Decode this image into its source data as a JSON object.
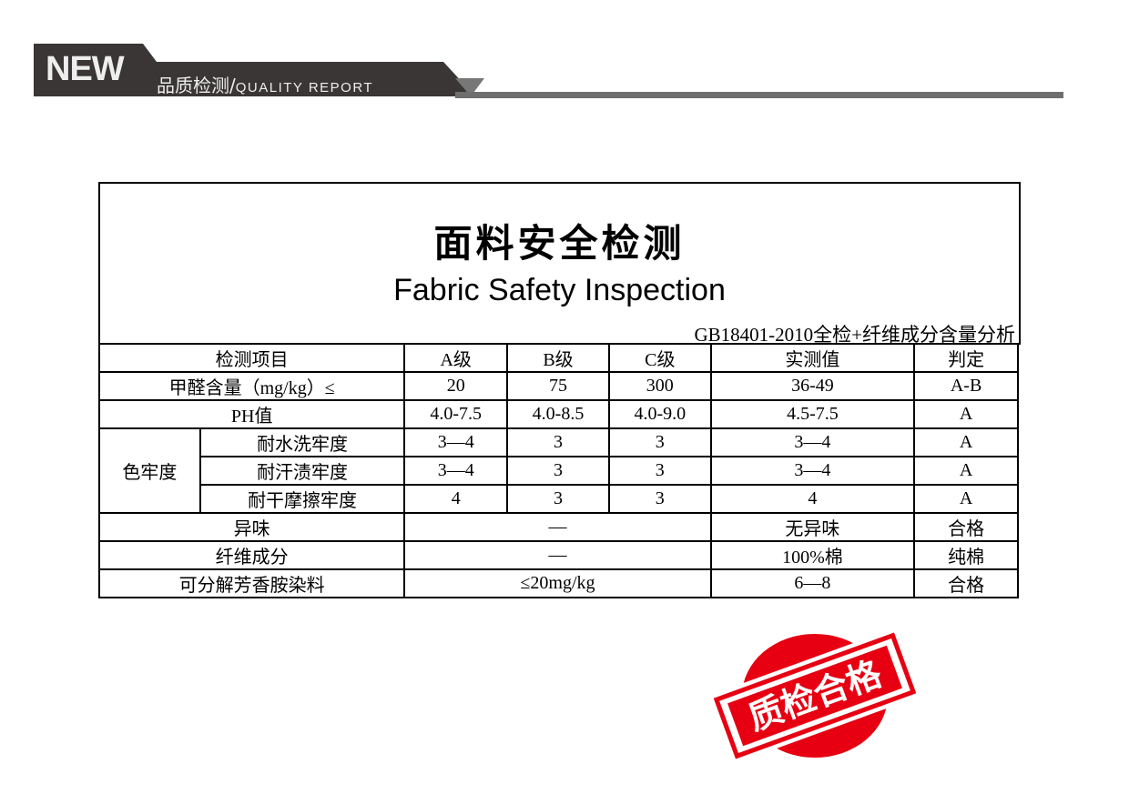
{
  "banner": {
    "badge": "NEW",
    "title_cn": "品质检测",
    "separator": "/",
    "title_en": "QUALITY REPORT",
    "bg_color": "#3a3635"
  },
  "report": {
    "title_cn": "面料安全检测",
    "title_en": "Fabric Safety Inspection",
    "standard": "GB18401-2010全检+纤维成分含量分析",
    "headers": [
      "检测项目",
      "A级",
      "B级",
      "C级",
      "实测值",
      "判定"
    ],
    "rows": {
      "formaldehyde": [
        "甲醛含量（mg/kg）≤",
        "20",
        "75",
        "300",
        "36-49",
        "A-B"
      ],
      "ph": [
        "PH值",
        "4.0-7.5",
        "4.0-8.5",
        "4.0-9.0",
        "4.5-7.5",
        "A"
      ],
      "fastness_group": "色牢度",
      "fastness": [
        [
          "耐水洗牢度",
          "3—4",
          "3",
          "3",
          "3—4",
          "A"
        ],
        [
          "耐汗渍牢度",
          "3—4",
          "3",
          "3",
          "3—4",
          "A"
        ],
        [
          "耐干摩擦牢度",
          "4",
          "3",
          "3",
          "4",
          "A"
        ]
      ],
      "odor": [
        "异味",
        "—",
        "无异味",
        "合格"
      ],
      "fiber": [
        "纤维成分",
        "—",
        "100%棉",
        "纯棉"
      ],
      "azo": [
        "可分解芳香胺染料",
        "≤20mg/kg",
        "6—8",
        "合格"
      ]
    }
  },
  "stamp": {
    "text": "质检合格",
    "color": "#e60012"
  }
}
